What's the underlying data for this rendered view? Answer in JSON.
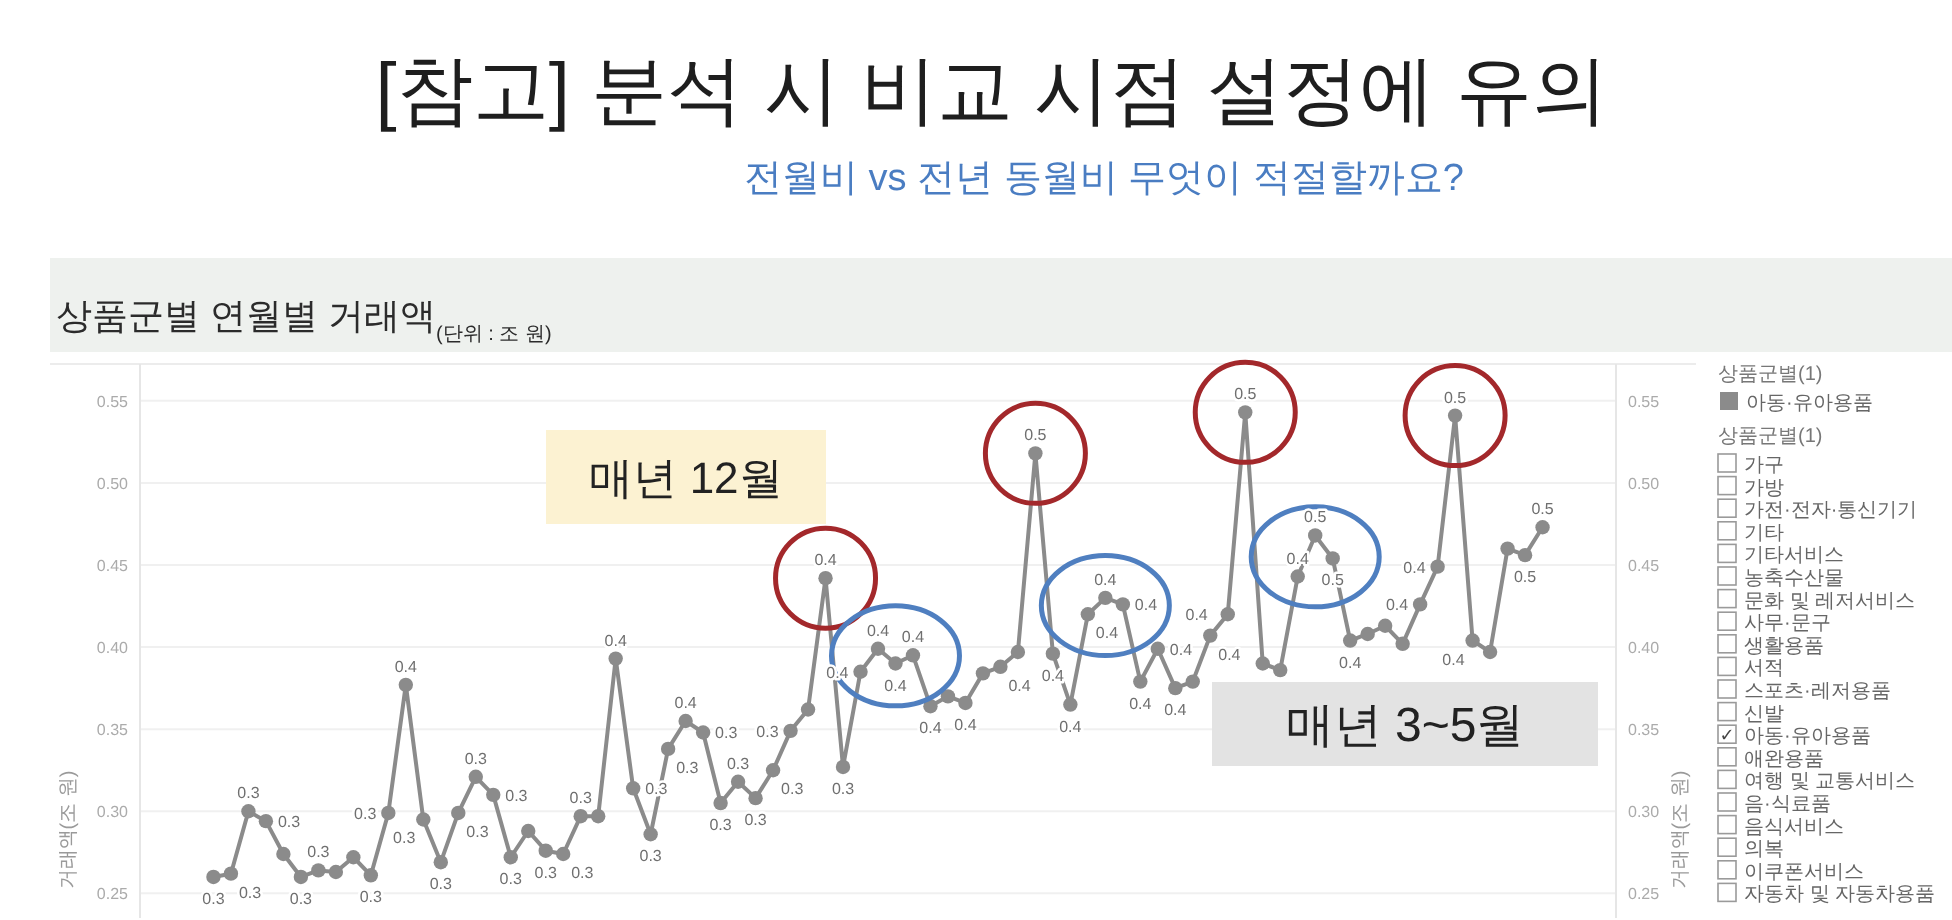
{
  "chart_data": [
    {
      "type": "line",
      "title": "[참고] 분석 시 비교 시점 설정에 유의",
      "subtitle": "전월비 vs 전년 동월비 무엇이 적절할까요?",
      "ylabel": "거래액(조 원)",
      "y2label": "거래액(조 원)",
      "legend_title": "상품군별(1)",
      "annotations": [
        "상품군별 연월별 거래액$_{(단위 : 조 원)}$",
        "매년 12월",
        "매년 3~5월"
      ],
      "categories": [
        null,
        null,
        null,
        null,
        null,
        null,
        null,
        null,
        null,
        null,
        null,
        null,
        null,
        null,
        null,
        null,
        null,
        null,
        null,
        null,
        null,
        null,
        null,
        null,
        null,
        null,
        null,
        null,
        null,
        null,
        null,
        null,
        null,
        null,
        null,
        null,
        null,
        null,
        null,
        null,
        null,
        null,
        null,
        null,
        null,
        null,
        null,
        null,
        null,
        null,
        null,
        null,
        null,
        null,
        null,
        null,
        null,
        null,
        null,
        null,
        null,
        null,
        null,
        null,
        null,
        null,
        null,
        null,
        null,
        null,
        null,
        null,
        null,
        null,
        null,
        null,
        null
      ],
      "series": [
        {
          "name": "아동·유아용품",
          "color": "#8b8b8b",
          "values": [
            0.26,
            0.262,
            0.3,
            0.294,
            0.274,
            0.26,
            0.264,
            0.263,
            0.272,
            0.261,
            0.299,
            0.377,
            0.295,
            0.269,
            0.299,
            0.321,
            0.31,
            0.272,
            0.288,
            0.276,
            0.274,
            0.297,
            0.297,
            0.393,
            0.314,
            0.286,
            0.338,
            0.355,
            0.348,
            0.305,
            0.318,
            0.308,
            0.325,
            0.349,
            0.362,
            0.442,
            0.327,
            0.385,
            0.399,
            0.39,
            0.395,
            0.364,
            0.37,
            0.366,
            0.384,
            0.388,
            0.397,
            0.518,
            0.396,
            0.365,
            0.42,
            0.43,
            0.426,
            0.379,
            0.399,
            0.375,
            0.379,
            0.407,
            0.42,
            0.543,
            0.39,
            0.386,
            0.443,
            0.468,
            0.454,
            0.404,
            0.408,
            0.413,
            0.402,
            0.426,
            0.449,
            0.541,
            0.404,
            0.397,
            0.46,
            0.456,
            0.473
          ],
          "value_labels": [
            "0.3",
            "0.3",
            "0.3",
            "0.3",
            null,
            "0.3",
            "0.3",
            null,
            null,
            "0.3",
            "0.3",
            "0.4",
            "0.3",
            "0.3",
            "0.3",
            "0.3",
            "0.3",
            "0.3",
            null,
            "0.3",
            "0.3",
            "0.3",
            null,
            "0.4",
            "0.3",
            "0.3",
            "0.3",
            "0.4",
            "0.3",
            "0.3",
            "0.3",
            "0.3",
            "0.3",
            "0.3",
            null,
            "0.4",
            "0.3",
            "0.4",
            "0.4",
            "0.4",
            "0.4",
            "0.4",
            null,
            "0.4",
            null,
            "0.4",
            null,
            "0.5",
            "0.4",
            "0.4",
            "0.4",
            "0.4",
            "0.4",
            "0.4",
            "0.4",
            "0.4",
            null,
            "0.4",
            "0.4",
            "0.5",
            null,
            null,
            "0.4",
            "0.5",
            "0.5",
            "0.4",
            null,
            null,
            null,
            "0.4",
            "0.4",
            "0.5",
            "0.4",
            null,
            null,
            "0.5",
            "0.5"
          ]
        }
      ],
      "ylim": [
        0.235,
        0.57
      ],
      "yticks": [
        0.25,
        {
          "value": 0.3,
          "label": "0.30"
        },
        0.35,
        {
          "value": 0.4,
          "label": "0.40"
        },
        0.45,
        {
          "value": 0.5,
          "label": "0.50"
        },
        0.55
      ],
      "y2lim": [
        0.235,
        0.57
      ],
      "y2ticks": [
        0.25,
        {
          "value": 0.3,
          "label": "0.30"
        },
        0.35,
        {
          "value": 0.4,
          "label": "0.40"
        },
        0.45,
        {
          "value": 0.5,
          "label": "0.50"
        },
        0.55
      ],
      "grid": "y",
      "legend": "top right",
      "marker": "circle",
      "tick_labels": "y"
    },
    {
      "type": "other",
      "title": "상품군별(1)",
      "categories": [
        "가구",
        "가방",
        "가전·전자·통신기기",
        "기타",
        "기타서비스",
        "농축수산물",
        "문화 및 레저서비스",
        "사무·문구",
        "생활용품",
        "서적",
        "스포츠·레저용품",
        "신발",
        "아동·유아용품",
        "애완용품",
        "여행 및 교통서비스",
        "음·식료품",
        "음식서비스",
        "의복",
        "이쿠폰서비스",
        "자동차 및 자동차용품"
      ],
      "value_labels": [
        null,
        null,
        null,
        null,
        null,
        null,
        null,
        null,
        null,
        null,
        null,
        null,
        "✓",
        null,
        null,
        null,
        null,
        null,
        null,
        null
      ]
    }
  ]
}
